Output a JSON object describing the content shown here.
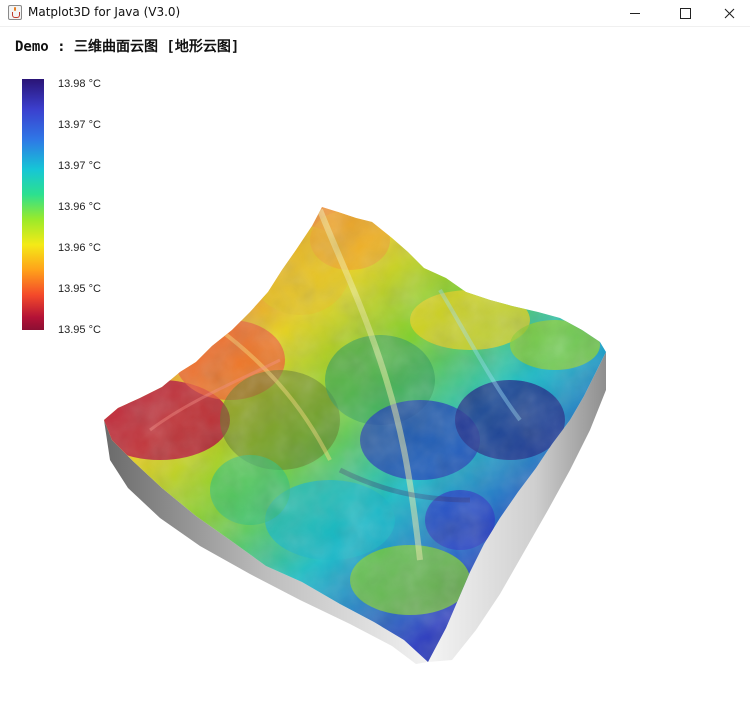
{
  "window": {
    "title": "Matplot3D for Java (V3.0)",
    "controls": {
      "minimize": "—",
      "maximize": "□",
      "close": "✕"
    }
  },
  "plot": {
    "title": "Demo : 三维曲面云图 [地形云图]"
  },
  "colorbar": {
    "labels": [
      "13.98 °C",
      "13.97 °C",
      "13.97 °C",
      "13.96 °C",
      "13.96 °C",
      "13.95 °C",
      "13.95 °C"
    ],
    "colors": [
      "#2a1476",
      "#3b3fce",
      "#16c6d6",
      "#2ce08f",
      "#f4ea17",
      "#ffa21a",
      "#f44a2a",
      "#8c0f33"
    ]
  },
  "icons": {
    "app": "java-cup-icon",
    "minimize": "minimize-icon",
    "maximize": "maximize-icon",
    "close": "close-icon"
  }
}
